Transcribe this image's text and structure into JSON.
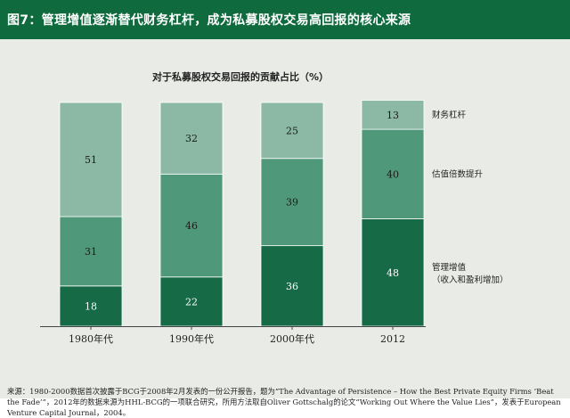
{
  "header": {
    "title": "图7：管理增值逐渐替代财务杠杆，成为私募股权交易高回报的核心来源"
  },
  "chart_data": {
    "type": "bar",
    "stacked": true,
    "title": "对于私募股权交易回报的贡献占比（%）",
    "categories": [
      "1980年代",
      "1990年代",
      "2000年代",
      "2012"
    ],
    "series": [
      {
        "name": "管理增值",
        "name_line2": "（收入和盈利增加）",
        "values": [
          18,
          22,
          36,
          48
        ],
        "color": "#166b46",
        "label_color": "#ffffff"
      },
      {
        "name": "估值倍数提升",
        "values": [
          31,
          46,
          39,
          40
        ],
        "color": "#4f987a",
        "label_color": "#1a1a1a"
      },
      {
        "name": "财务杠杆",
        "values": [
          51,
          32,
          25,
          13
        ],
        "color": "#8bb9a6",
        "label_color": "#1a1a1a"
      }
    ],
    "ylim": [
      0,
      100
    ],
    "grid": false,
    "legend_placement": "right"
  },
  "footnote": {
    "text": "来源：1980-2000数据首次披露于BCG于2008年2月发表的一份公开报告，题为“The Advantage of Persistence – How the Best Private Equity Firms ‘Beat the Fade’”，2012年的数据来源为HHL-BCG的一项联合研究，所用方法取自Oliver Gottschalg的论文“Working Out Where the Value Lies”，发表于European Venture Capital Journal，2004。"
  }
}
